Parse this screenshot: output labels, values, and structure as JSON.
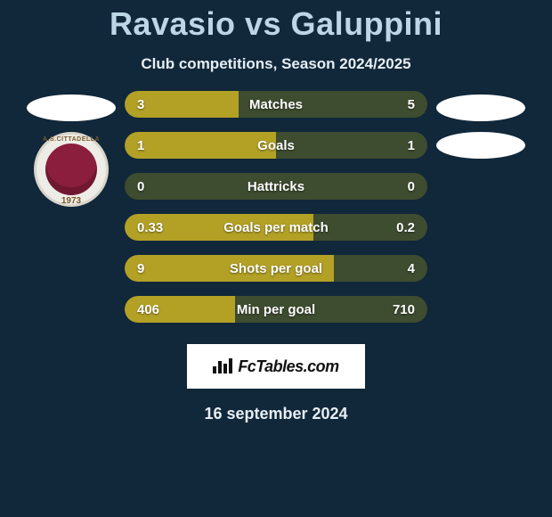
{
  "title": "Ravasio vs Galuppini",
  "subtitle": "Club competitions, Season 2024/2025",
  "date_text": "16 september 2024",
  "logo": {
    "text": "FcTables.com"
  },
  "left_crest": {
    "top_text": "A.S.CITTADELLA",
    "year": "1973"
  },
  "colors": {
    "page_bg": "#11273a",
    "bar_bg": "#3e4c2f",
    "bar_fill": "#b3a126",
    "title_color": "#bcd6e6"
  },
  "bars": [
    {
      "label": "Matches",
      "left": "3",
      "right": "5",
      "fill_pct": 37.5
    },
    {
      "label": "Goals",
      "left": "1",
      "right": "1",
      "fill_pct": 50.0
    },
    {
      "label": "Hattricks",
      "left": "0",
      "right": "0",
      "fill_pct": 0.0
    },
    {
      "label": "Goals per match",
      "left": "0.33",
      "right": "0.2",
      "fill_pct": 62.3
    },
    {
      "label": "Shots per goal",
      "left": "9",
      "right": "4",
      "fill_pct": 69.2
    },
    {
      "label": "Min per goal",
      "left": "406",
      "right": "710",
      "fill_pct": 36.4
    }
  ]
}
